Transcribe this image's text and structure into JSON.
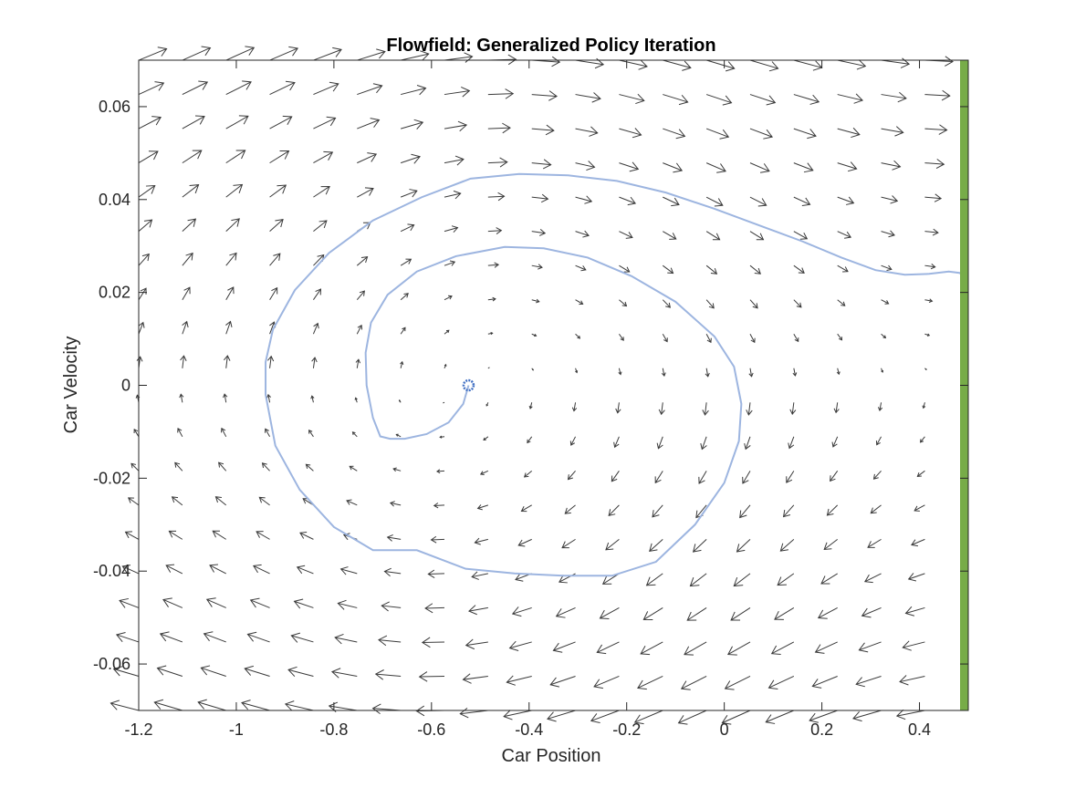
{
  "chart_data": {
    "type": "quiver",
    "title": "Flowfield: Generalized Policy Iteration",
    "xlabel": "Car Position",
    "ylabel": "Car Velocity",
    "xlim": [
      -1.2,
      0.5
    ],
    "ylim": [
      -0.07,
      0.07
    ],
    "xticks": [
      -1.2,
      -1,
      -0.8,
      -0.6,
      -0.4,
      -0.2,
      0,
      0.2,
      0.4
    ],
    "xtick_labels": [
      "-1.2",
      "-1",
      "-0.8",
      "-0.6",
      "-0.4",
      "-0.2",
      "0",
      "0.2",
      "0.4"
    ],
    "yticks": [
      0.06,
      0.04,
      0.02,
      0,
      -0.02,
      -0.04,
      -0.06
    ],
    "ytick_labels": [
      "0.06",
      "0.04",
      "0.02",
      "0",
      "-0.02",
      "-0.04",
      "-0.06"
    ],
    "grid": false,
    "colors": {
      "arrows": "#3a3a3a",
      "trajectory": "#9db5e0",
      "start_marker": "#4472c4",
      "goal_bar": "#77ac48",
      "axes": "#262626"
    },
    "flowfield": {
      "x_start": -1.2,
      "x_step": 0.0895,
      "x_count": 20,
      "y_start": -0.07,
      "y_step": 0.007368,
      "y_count": 20,
      "description_free_note": ""
    },
    "trajectory": {
      "x": [
        -0.524,
        -0.535,
        -0.565,
        -0.61,
        -0.655,
        -0.685,
        -0.705,
        -0.72,
        -0.733,
        -0.735,
        -0.724,
        -0.69,
        -0.63,
        -0.55,
        -0.45,
        -0.37,
        -0.28,
        -0.19,
        -0.1,
        -0.02,
        0.02,
        0.035,
        0.03,
        0.0,
        -0.06,
        -0.14,
        -0.23,
        -0.33,
        -0.43,
        -0.53,
        -0.63,
        -0.72,
        -0.8,
        -0.87,
        -0.92,
        -0.94,
        -0.94,
        -0.925,
        -0.88,
        -0.81,
        -0.72,
        -0.62,
        -0.52,
        -0.42,
        -0.32,
        -0.22,
        -0.12,
        -0.02,
        0.07,
        0.16,
        0.24,
        0.31,
        0.37,
        0.42,
        0.46,
        0.482,
        0.495,
        0.495,
        0.5
      ],
      "y": [
        0.0,
        -0.004,
        -0.008,
        -0.0105,
        -0.0115,
        -0.0115,
        -0.011,
        -0.007,
        0.0,
        0.007,
        0.0135,
        0.0195,
        0.0245,
        0.0278,
        0.0298,
        0.0295,
        0.0275,
        0.0235,
        0.018,
        0.0105,
        0.004,
        -0.004,
        -0.012,
        -0.021,
        -0.03,
        -0.038,
        -0.041,
        -0.041,
        -0.0405,
        -0.0395,
        -0.0355,
        -0.0355,
        -0.0305,
        -0.0225,
        -0.013,
        -0.002,
        0.005,
        0.012,
        0.0205,
        0.0285,
        0.0355,
        0.0405,
        0.0445,
        0.0455,
        0.0452,
        0.044,
        0.0415,
        0.038,
        0.0345,
        0.031,
        0.0275,
        0.0248,
        0.0238,
        0.024,
        0.0245,
        0.0242,
        0.0232,
        0.0003,
        0.0
      ]
    },
    "start_point": {
      "x": -0.524,
      "y": 0.0
    },
    "goal_position": 0.5
  }
}
